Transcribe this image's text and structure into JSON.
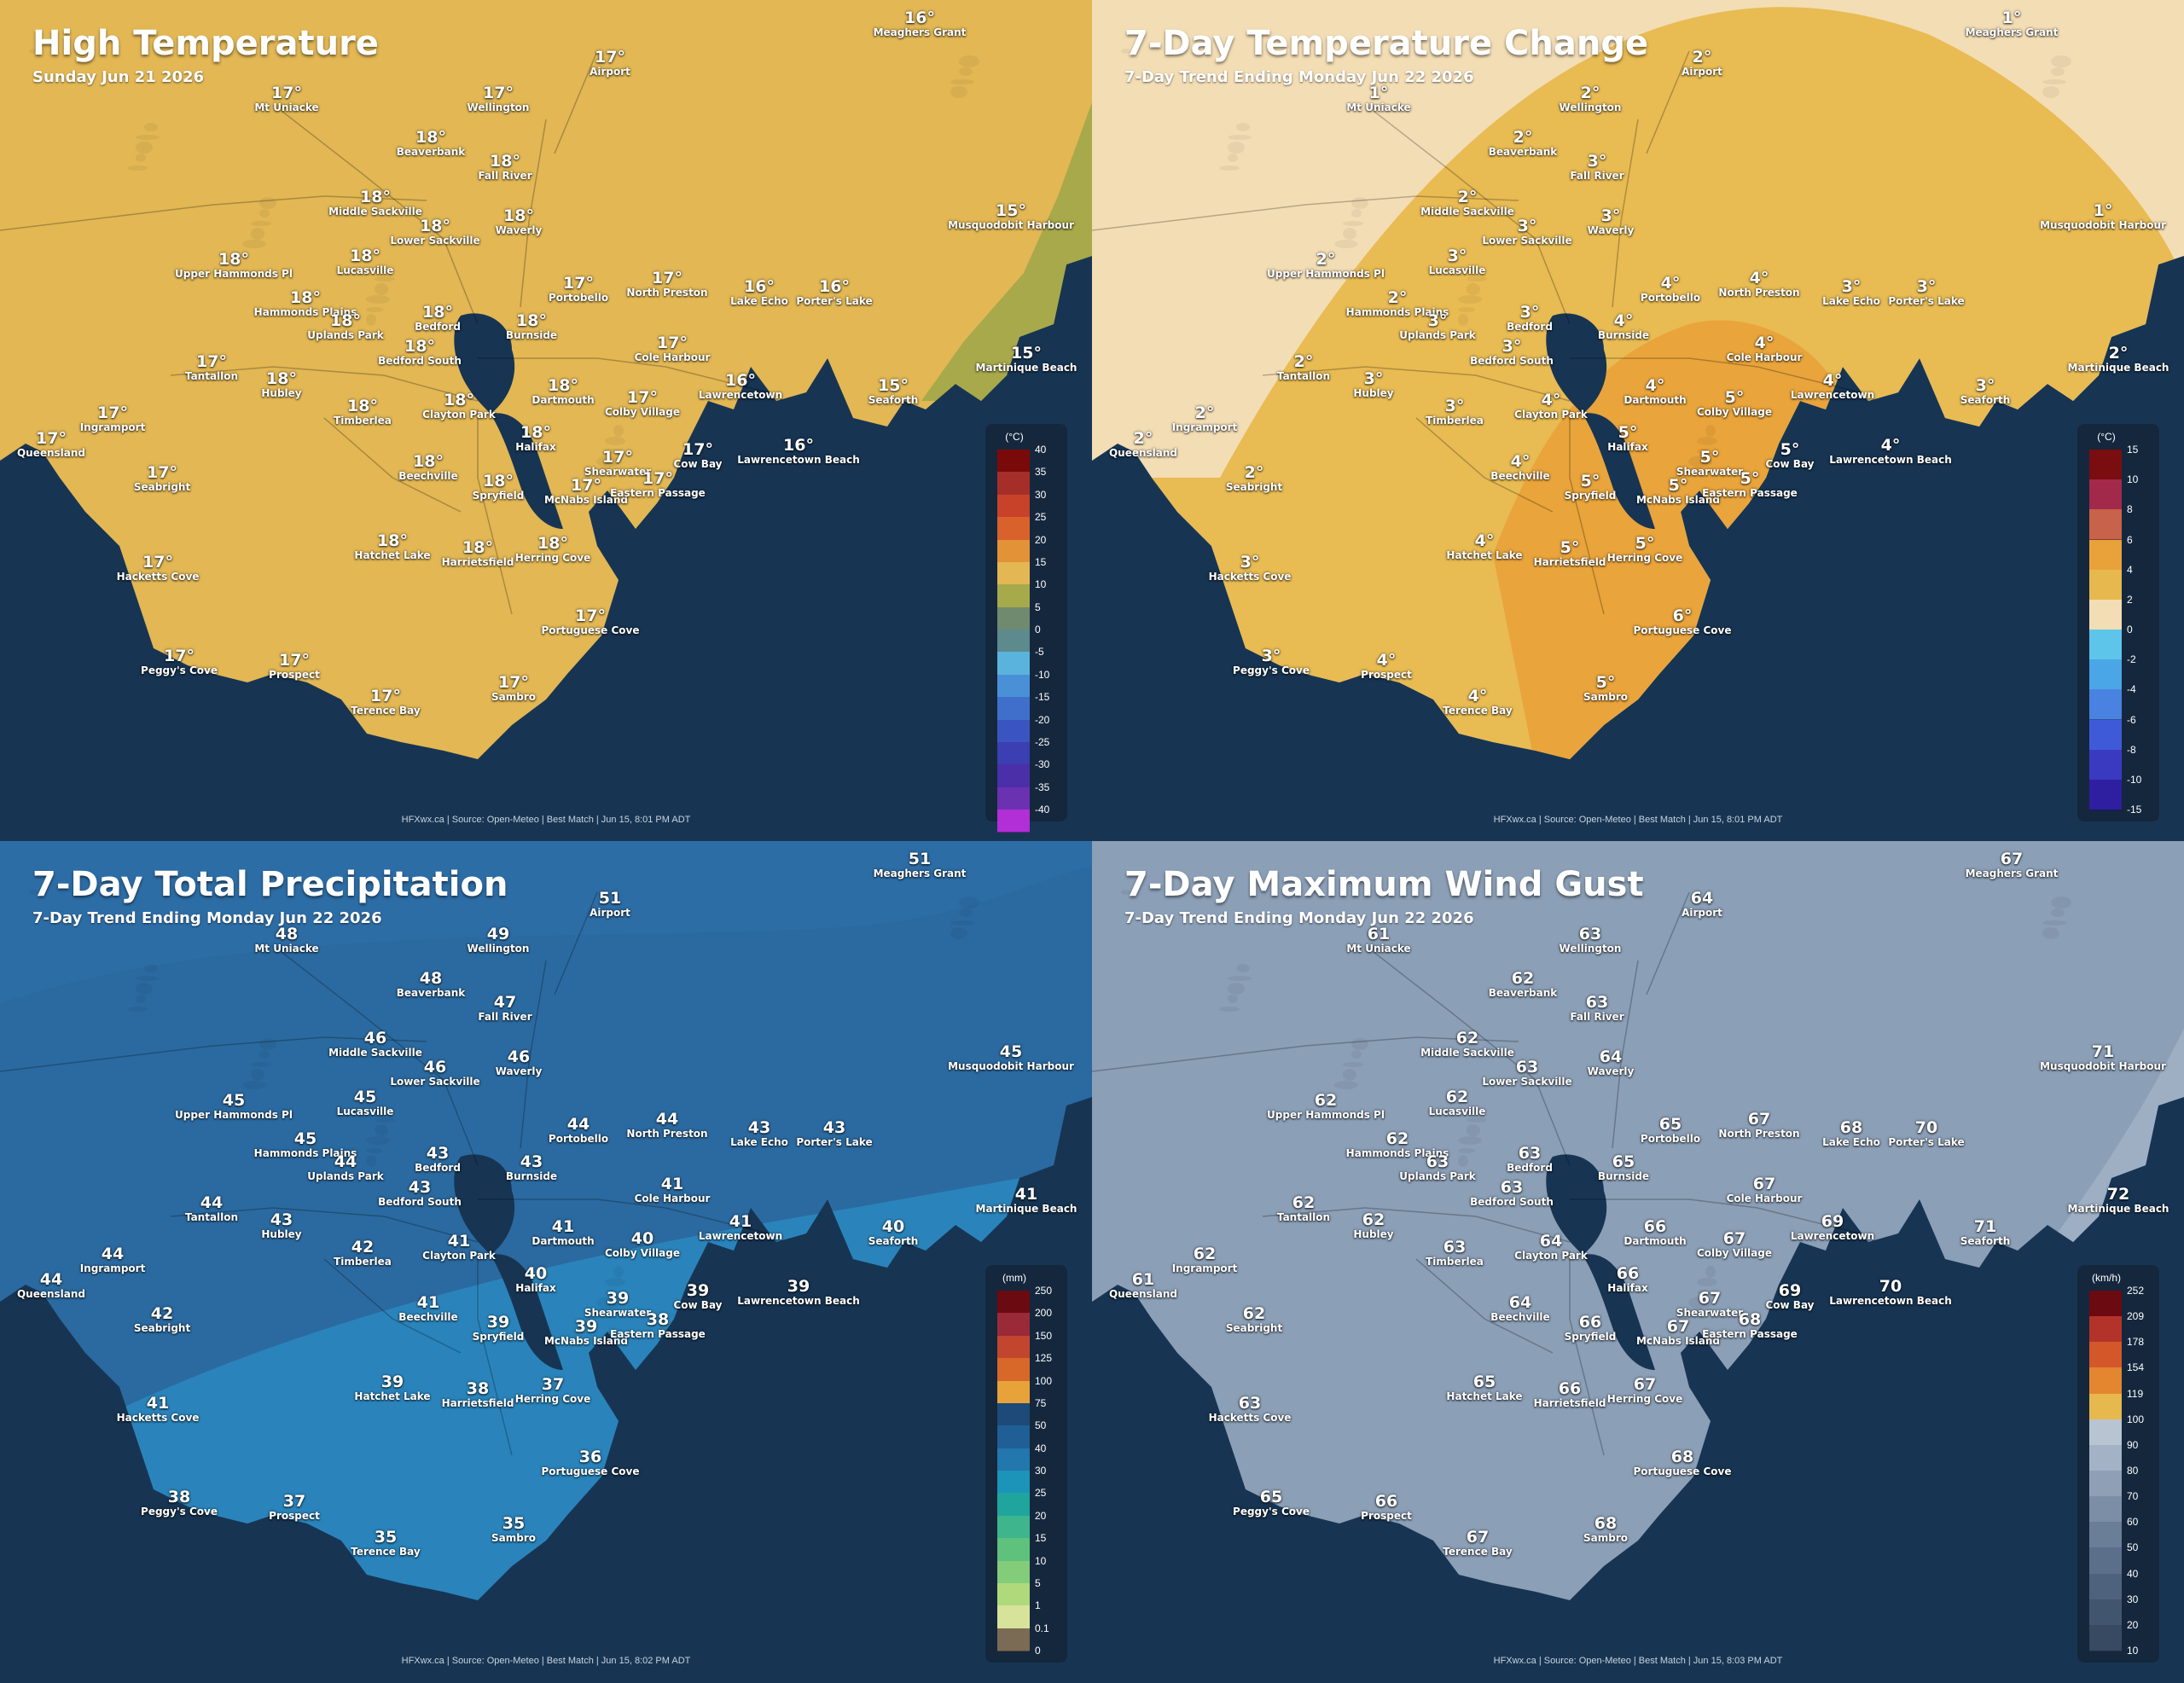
{
  "panels": [
    {
      "id": "high-temp",
      "title": "High Temperature",
      "subtitle": "Sunday Jun 21 2026",
      "footer": "HFXwx.ca | Source: Open-Meteo | Best Match | Jun 15, 8:01 PM ADT",
      "land_color": "#e2b754",
      "water_color": "#173553",
      "zones": [
        {
          "color": "#a3a84a",
          "shape": "east-edge"
        }
      ],
      "legend": {
        "unit": "(°C)",
        "ticks": [
          "40",
          "35",
          "30",
          "25",
          "20",
          "15",
          "10",
          "5",
          "0",
          "-5",
          "-10",
          "-15",
          "-20",
          "-25",
          "-30",
          "-35",
          "-40"
        ],
        "colors": [
          "#7a0a0a",
          "#a52f28",
          "#c8422a",
          "#d9612b",
          "#e39238",
          "#e2b754",
          "#a6aa4a",
          "#6f8a6e",
          "#5d8a8c",
          "#5ab3dc",
          "#4a90d6",
          "#3f6fca",
          "#3a55c0",
          "#3b3fb2",
          "#4a2fa8",
          "#6a32b0",
          "#b22ed6"
        ]
      },
      "locations": [
        {
          "v": "16°",
          "n": "Meaghers Grant"
        },
        {
          "v": "17°",
          "n": "Airport"
        },
        {
          "v": "17°",
          "n": "Mt Uniacke"
        },
        {
          "v": "17°",
          "n": "Wellington"
        },
        {
          "v": "18°",
          "n": "Beaverbank"
        },
        {
          "v": "18°",
          "n": "Fall River"
        },
        {
          "v": "18°",
          "n": "Middle Sackville"
        },
        {
          "v": "18°",
          "n": "Lower Sackville"
        },
        {
          "v": "18°",
          "n": "Waverly"
        },
        {
          "v": "15°",
          "n": "Musquodobit Harbour"
        },
        {
          "v": "18°",
          "n": "Upper Hammonds Pl"
        },
        {
          "v": "18°",
          "n": "Lucasville"
        },
        {
          "v": "18°",
          "n": "Hammonds Plains"
        },
        {
          "v": "17°",
          "n": "Portobello"
        },
        {
          "v": "17°",
          "n": "North Preston"
        },
        {
          "v": "16°",
          "n": "Lake Echo"
        },
        {
          "v": "16°",
          "n": "Porter's Lake"
        },
        {
          "v": "18°",
          "n": "Uplands Park"
        },
        {
          "v": "18°",
          "n": "Bedford"
        },
        {
          "v": "18°",
          "n": "Burnside"
        },
        {
          "v": "18°",
          "n": "Bedford South"
        },
        {
          "v": "17°",
          "n": "Cole Harbour"
        },
        {
          "v": "15°",
          "n": "Martinique Beach"
        },
        {
          "v": "17°",
          "n": "Tantallon"
        },
        {
          "v": "18°",
          "n": "Hubley"
        },
        {
          "v": "18°",
          "n": "Dartmouth"
        },
        {
          "v": "16°",
          "n": "Lawrencetown"
        },
        {
          "v": "15°",
          "n": "Seaforth"
        },
        {
          "v": "17°",
          "n": "Ingramport"
        },
        {
          "v": "18°",
          "n": "Timberlea"
        },
        {
          "v": "18°",
          "n": "Clayton Park"
        },
        {
          "v": "17°",
          "n": "Colby Village"
        },
        {
          "v": "17°",
          "n": "Queensland"
        },
        {
          "v": "18°",
          "n": "Halifax"
        },
        {
          "v": "17°",
          "n": "Shearwater"
        },
        {
          "v": "16°",
          "n": "Lawrencetown Beach"
        },
        {
          "v": "17°",
          "n": "Cow Bay"
        },
        {
          "v": "18°",
          "n": "Beechville"
        },
        {
          "v": "17°",
          "n": "Seabright"
        },
        {
          "v": "18°",
          "n": "Spryfield"
        },
        {
          "v": "17°",
          "n": "McNabs Island"
        },
        {
          "v": "17°",
          "n": "Eastern Passage"
        },
        {
          "v": "18°",
          "n": "Hatchet Lake"
        },
        {
          "v": "18°",
          "n": "Harrietsfield"
        },
        {
          "v": "18°",
          "n": "Herring Cove"
        },
        {
          "v": "17°",
          "n": "Hacketts Cove"
        },
        {
          "v": "17°",
          "n": "Portuguese Cove"
        },
        {
          "v": "17°",
          "n": "Peggy's Cove"
        },
        {
          "v": "17°",
          "n": "Prospect"
        },
        {
          "v": "17°",
          "n": "Terence Bay"
        },
        {
          "v": "17°",
          "n": "Sambro"
        }
      ]
    },
    {
      "id": "temp-change",
      "title": "7-Day Temperature Change",
      "subtitle": "7-Day Trend Ending Monday Jun 22 2026",
      "footer": "HFXwx.ca | Source: Open-Meteo | Best Match | Jun 15, 8:01 PM ADT",
      "land_color": "#f3ddb4",
      "water_color": "#173553",
      "zones": [
        {
          "color": "#e7b84e",
          "shape": "arch"
        },
        {
          "color": "#e9a23a",
          "shape": "south-lobe"
        }
      ],
      "legend": {
        "unit": "(°C)",
        "ticks": [
          "15",
          "10",
          "8",
          "6",
          "4",
          "2",
          "0",
          "-2",
          "-4",
          "-6",
          "-8",
          "-10",
          "-15"
        ],
        "colors": [
          "#7a0d10",
          "#a3294a",
          "#c8624a",
          "#e9a23a",
          "#e7b84e",
          "#f3ddb4",
          "#5ec5ea",
          "#4aa6e6",
          "#4a82e2",
          "#3f5ad8",
          "#3a3ac0",
          "#2e1fa0"
        ]
      },
      "locations": [
        {
          "v": "1°",
          "n": "Meaghers Grant"
        },
        {
          "v": "2°",
          "n": "Airport"
        },
        {
          "v": "1°",
          "n": "Mt Uniacke"
        },
        {
          "v": "2°",
          "n": "Wellington"
        },
        {
          "v": "2°",
          "n": "Beaverbank"
        },
        {
          "v": "3°",
          "n": "Fall River"
        },
        {
          "v": "2°",
          "n": "Middle Sackville"
        },
        {
          "v": "3°",
          "n": "Lower Sackville"
        },
        {
          "v": "3°",
          "n": "Waverly"
        },
        {
          "v": "1°",
          "n": "Musquodobit Harbour"
        },
        {
          "v": "2°",
          "n": "Upper Hammonds Pl"
        },
        {
          "v": "3°",
          "n": "Lucasville"
        },
        {
          "v": "2°",
          "n": "Hammonds Plains"
        },
        {
          "v": "4°",
          "n": "Portobello"
        },
        {
          "v": "4°",
          "n": "North Preston"
        },
        {
          "v": "3°",
          "n": "Lake Echo"
        },
        {
          "v": "3°",
          "n": "Porter's Lake"
        },
        {
          "v": "3°",
          "n": "Uplands Park"
        },
        {
          "v": "3°",
          "n": "Bedford"
        },
        {
          "v": "4°",
          "n": "Burnside"
        },
        {
          "v": "3°",
          "n": "Bedford South"
        },
        {
          "v": "4°",
          "n": "Cole Harbour"
        },
        {
          "v": "2°",
          "n": "Martinique Beach"
        },
        {
          "v": "2°",
          "n": "Tantallon"
        },
        {
          "v": "3°",
          "n": "Hubley"
        },
        {
          "v": "4°",
          "n": "Dartmouth"
        },
        {
          "v": "4°",
          "n": "Lawrencetown"
        },
        {
          "v": "3°",
          "n": "Seaforth"
        },
        {
          "v": "2°",
          "n": "Ingramport"
        },
        {
          "v": "3°",
          "n": "Timberlea"
        },
        {
          "v": "4°",
          "n": "Clayton Park"
        },
        {
          "v": "5°",
          "n": "Colby Village"
        },
        {
          "v": "2°",
          "n": "Queensland"
        },
        {
          "v": "5°",
          "n": "Halifax"
        },
        {
          "v": "5°",
          "n": "Shearwater"
        },
        {
          "v": "4°",
          "n": "Lawrencetown Beach"
        },
        {
          "v": "5°",
          "n": "Cow Bay"
        },
        {
          "v": "4°",
          "n": "Beechville"
        },
        {
          "v": "2°",
          "n": "Seabright"
        },
        {
          "v": "5°",
          "n": "Spryfield"
        },
        {
          "v": "5°",
          "n": "McNabs Island"
        },
        {
          "v": "5°",
          "n": "Eastern Passage"
        },
        {
          "v": "4°",
          "n": "Hatchet Lake"
        },
        {
          "v": "5°",
          "n": "Harrietsfield"
        },
        {
          "v": "5°",
          "n": "Herring Cove"
        },
        {
          "v": "3°",
          "n": "Hacketts Cove"
        },
        {
          "v": "6°",
          "n": "Portuguese Cove"
        },
        {
          "v": "3°",
          "n": "Peggy's Cove"
        },
        {
          "v": "4°",
          "n": "Prospect"
        },
        {
          "v": "4°",
          "n": "Terence Bay"
        },
        {
          "v": "5°",
          "n": "Sambro"
        }
      ]
    },
    {
      "id": "precip",
      "title": "7-Day Total Precipitation",
      "subtitle": "7-Day Trend Ending Monday Jun 22 2026",
      "footer": "HFXwx.ca | Source: Open-Meteo | Best Match | Jun 15, 8:02 PM ADT",
      "land_color": "#2b6aa0",
      "water_color": "#173553",
      "zones": [
        {
          "color": "#2d6ea6",
          "shape": "north-band",
          "label": "50"
        },
        {
          "color": "#2a86bd",
          "shape": "south-region",
          "label": "40"
        }
      ],
      "legend": {
        "unit": "(mm)",
        "ticks": [
          "250",
          "200",
          "150",
          "125",
          "100",
          "75",
          "50",
          "40",
          "30",
          "25",
          "20",
          "15",
          "10",
          "5",
          "1",
          "0.1",
          "0"
        ],
        "colors": [
          "#6b0a10",
          "#9a2a38",
          "#c2462e",
          "#d8672a",
          "#e7a23a",
          "#1d4a78",
          "#1f5f95",
          "#2277ad",
          "#1c93b8",
          "#1fa59e",
          "#3fb58e",
          "#5ec17c",
          "#82cc7a",
          "#b0d97c",
          "#d7e39a",
          "#7b6a54"
        ]
      },
      "locations": [
        {
          "v": "51",
          "n": "Meaghers Grant"
        },
        {
          "v": "51",
          "n": "Airport"
        },
        {
          "v": "48",
          "n": "Mt Uniacke"
        },
        {
          "v": "49",
          "n": "Wellington"
        },
        {
          "v": "48",
          "n": "Beaverbank"
        },
        {
          "v": "47",
          "n": "Fall River"
        },
        {
          "v": "46",
          "n": "Middle Sackville"
        },
        {
          "v": "46",
          "n": "Lower Sackville"
        },
        {
          "v": "46",
          "n": "Waverly"
        },
        {
          "v": "45",
          "n": "Musquodobit Harbour"
        },
        {
          "v": "45",
          "n": "Upper Hammonds Pl"
        },
        {
          "v": "45",
          "n": "Lucasville"
        },
        {
          "v": "45",
          "n": "Hammonds Plains"
        },
        {
          "v": "44",
          "n": "Portobello"
        },
        {
          "v": "44",
          "n": "North Preston"
        },
        {
          "v": "43",
          "n": "Lake Echo"
        },
        {
          "v": "43",
          "n": "Porter's Lake"
        },
        {
          "v": "44",
          "n": "Uplands Park"
        },
        {
          "v": "43",
          "n": "Bedford"
        },
        {
          "v": "43",
          "n": "Burnside"
        },
        {
          "v": "43",
          "n": "Bedford South"
        },
        {
          "v": "41",
          "n": "Cole Harbour"
        },
        {
          "v": "41",
          "n": "Martinique Beach"
        },
        {
          "v": "44",
          "n": "Tantallon"
        },
        {
          "v": "43",
          "n": "Hubley"
        },
        {
          "v": "41",
          "n": "Dartmouth"
        },
        {
          "v": "41",
          "n": "Lawrencetown"
        },
        {
          "v": "40",
          "n": "Seaforth"
        },
        {
          "v": "44",
          "n": "Ingramport"
        },
        {
          "v": "42",
          "n": "Timberlea"
        },
        {
          "v": "41",
          "n": "Clayton Park"
        },
        {
          "v": "40",
          "n": "Colby Village"
        },
        {
          "v": "44",
          "n": "Queensland"
        },
        {
          "v": "40",
          "n": "Halifax"
        },
        {
          "v": "39",
          "n": "Shearwater"
        },
        {
          "v": "39",
          "n": "Lawrencetown Beach"
        },
        {
          "v": "39",
          "n": "Cow Bay"
        },
        {
          "v": "41",
          "n": "Beechville"
        },
        {
          "v": "42",
          "n": "Seabright"
        },
        {
          "v": "39",
          "n": "Spryfield"
        },
        {
          "v": "39",
          "n": "McNabs Island"
        },
        {
          "v": "38",
          "n": "Eastern Passage"
        },
        {
          "v": "39",
          "n": "Hatchet Lake"
        },
        {
          "v": "38",
          "n": "Harrietsfield"
        },
        {
          "v": "37",
          "n": "Herring Cove"
        },
        {
          "v": "41",
          "n": "Hacketts Cove"
        },
        {
          "v": "36",
          "n": "Portuguese Cove"
        },
        {
          "v": "38",
          "n": "Peggy's Cove"
        },
        {
          "v": "37",
          "n": "Prospect"
        },
        {
          "v": "35",
          "n": "Terence Bay"
        },
        {
          "v": "35",
          "n": "Sambro"
        }
      ]
    },
    {
      "id": "wind-gust",
      "title": "7-Day Maximum Wind Gust",
      "subtitle": "7-Day Trend Ending Monday Jun 22 2026",
      "footer": "HFXwx.ca | Source: Open-Meteo | Best Match | Jun 15, 8:03 PM ADT",
      "land_color": "#8b9fb7",
      "water_color": "#173553",
      "zones": [
        {
          "color": "#9fb0c4",
          "shape": "east-wedge",
          "label": "70"
        }
      ],
      "legend": {
        "unit": "(km/h)",
        "ticks": [
          "252",
          "209",
          "178",
          "154",
          "119",
          "100",
          "90",
          "80",
          "70",
          "60",
          "50",
          "40",
          "30",
          "20",
          "10"
        ],
        "colors": [
          "#6b0a10",
          "#b3332a",
          "#d4572a",
          "#e3862f",
          "#e7b84e",
          "#b8c4d2",
          "#a3b2c4",
          "#8fa0b6",
          "#7c8ea6",
          "#6b7e98",
          "#5c6f8a",
          "#4e627d",
          "#42556f",
          "#384a62"
        ]
      },
      "locations": [
        {
          "v": "67",
          "n": "Meaghers Grant"
        },
        {
          "v": "64",
          "n": "Airport"
        },
        {
          "v": "61",
          "n": "Mt Uniacke"
        },
        {
          "v": "63",
          "n": "Wellington"
        },
        {
          "v": "62",
          "n": "Beaverbank"
        },
        {
          "v": "63",
          "n": "Fall River"
        },
        {
          "v": "62",
          "n": "Middle Sackville"
        },
        {
          "v": "63",
          "n": "Lower Sackville"
        },
        {
          "v": "64",
          "n": "Waverly"
        },
        {
          "v": "71",
          "n": "Musquodobit Harbour"
        },
        {
          "v": "62",
          "n": "Upper Hammonds Pl"
        },
        {
          "v": "62",
          "n": "Lucasville"
        },
        {
          "v": "62",
          "n": "Hammonds Plains"
        },
        {
          "v": "65",
          "n": "Portobello"
        },
        {
          "v": "67",
          "n": "North Preston"
        },
        {
          "v": "68",
          "n": "Lake Echo"
        },
        {
          "v": "70",
          "n": "Porter's Lake"
        },
        {
          "v": "63",
          "n": "Uplands Park"
        },
        {
          "v": "63",
          "n": "Bedford"
        },
        {
          "v": "65",
          "n": "Burnside"
        },
        {
          "v": "63",
          "n": "Bedford South"
        },
        {
          "v": "67",
          "n": "Cole Harbour"
        },
        {
          "v": "72",
          "n": "Martinique Beach"
        },
        {
          "v": "62",
          "n": "Tantallon"
        },
        {
          "v": "62",
          "n": "Hubley"
        },
        {
          "v": "66",
          "n": "Dartmouth"
        },
        {
          "v": "69",
          "n": "Lawrencetown"
        },
        {
          "v": "71",
          "n": "Seaforth"
        },
        {
          "v": "62",
          "n": "Ingramport"
        },
        {
          "v": "63",
          "n": "Timberlea"
        },
        {
          "v": "64",
          "n": "Clayton Park"
        },
        {
          "v": "67",
          "n": "Colby Village"
        },
        {
          "v": "61",
          "n": "Queensland"
        },
        {
          "v": "66",
          "n": "Halifax"
        },
        {
          "v": "67",
          "n": "Shearwater"
        },
        {
          "v": "70",
          "n": "Lawrencetown Beach"
        },
        {
          "v": "69",
          "n": "Cow Bay"
        },
        {
          "v": "64",
          "n": "Beechville"
        },
        {
          "v": "62",
          "n": "Seabright"
        },
        {
          "v": "66",
          "n": "Spryfield"
        },
        {
          "v": "67",
          "n": "McNabs Island"
        },
        {
          "v": "68",
          "n": "Eastern Passage"
        },
        {
          "v": "65",
          "n": "Hatchet Lake"
        },
        {
          "v": "66",
          "n": "Harrietsfield"
        },
        {
          "v": "67",
          "n": "Herring Cove"
        },
        {
          "v": "63",
          "n": "Hacketts Cove"
        },
        {
          "v": "68",
          "n": "Portuguese Cove"
        },
        {
          "v": "65",
          "n": "Peggy's Cove"
        },
        {
          "v": "66",
          "n": "Prospect"
        },
        {
          "v": "67",
          "n": "Terence Bay"
        },
        {
          "v": "68",
          "n": "Sambro"
        }
      ]
    }
  ]
}
